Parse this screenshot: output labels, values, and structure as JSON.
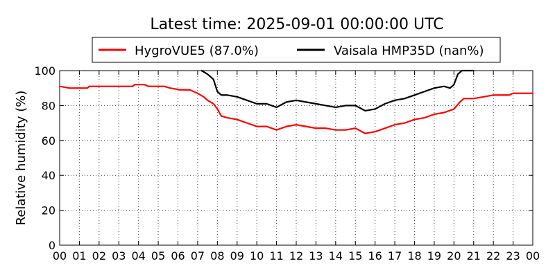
{
  "chart_data": {
    "type": "line",
    "title": "Latest time: 2025-09-01 00:00:00 UTC",
    "xlabel": "",
    "ylabel": "Relative humidity (%)",
    "ylim": [
      0,
      100
    ],
    "xlim": [
      0,
      24
    ],
    "grid": true,
    "legend_position": "top",
    "x_tick_labels": [
      "00",
      "01",
      "02",
      "03",
      "04",
      "05",
      "06",
      "07",
      "08",
      "09",
      "10",
      "11",
      "12",
      "13",
      "14",
      "15",
      "16",
      "17",
      "18",
      "19",
      "20",
      "21",
      "22",
      "23",
      "00"
    ],
    "y_ticks": [
      0,
      20,
      40,
      60,
      80,
      100
    ],
    "series": [
      {
        "name": "HygroVUE5 (87.0%)",
        "color": "#ff0000",
        "points": [
          [
            0.0,
            91
          ],
          [
            0.5,
            90
          ],
          [
            1.4,
            90
          ],
          [
            1.5,
            91
          ],
          [
            3.7,
            91
          ],
          [
            3.8,
            92
          ],
          [
            4.3,
            92
          ],
          [
            4.5,
            91
          ],
          [
            5.3,
            91
          ],
          [
            5.6,
            90
          ],
          [
            6.1,
            89
          ],
          [
            6.6,
            89
          ],
          [
            7.0,
            87
          ],
          [
            7.3,
            85
          ],
          [
            7.5,
            83
          ],
          [
            7.8,
            81
          ],
          [
            8.0,
            78
          ],
          [
            8.2,
            74
          ],
          [
            8.5,
            73
          ],
          [
            9.0,
            72
          ],
          [
            9.5,
            70
          ],
          [
            10.0,
            68
          ],
          [
            10.5,
            68
          ],
          [
            11.0,
            66
          ],
          [
            11.5,
            68
          ],
          [
            12.0,
            69
          ],
          [
            12.5,
            68
          ],
          [
            13.0,
            67
          ],
          [
            13.5,
            67
          ],
          [
            14.0,
            66
          ],
          [
            14.5,
            66
          ],
          [
            15.0,
            67
          ],
          [
            15.5,
            64
          ],
          [
            16.0,
            65
          ],
          [
            16.5,
            67
          ],
          [
            17.0,
            69
          ],
          [
            17.5,
            70
          ],
          [
            18.0,
            72
          ],
          [
            18.5,
            73
          ],
          [
            19.0,
            75
          ],
          [
            19.5,
            76
          ],
          [
            20.0,
            78
          ],
          [
            20.3,
            82
          ],
          [
            20.5,
            84
          ],
          [
            21.0,
            84
          ],
          [
            21.5,
            85
          ],
          [
            22.0,
            86
          ],
          [
            22.5,
            86
          ],
          [
            22.8,
            86
          ],
          [
            23.0,
            87
          ],
          [
            24.0,
            87
          ]
        ]
      },
      {
        "name": "Vaisala HMP35D (nan%)",
        "color": "#000000",
        "points": [
          [
            7.2,
            100
          ],
          [
            7.5,
            98
          ],
          [
            7.8,
            95
          ],
          [
            8.0,
            88
          ],
          [
            8.2,
            86
          ],
          [
            8.5,
            86
          ],
          [
            9.0,
            85
          ],
          [
            9.5,
            83
          ],
          [
            10.0,
            81
          ],
          [
            10.5,
            81
          ],
          [
            11.0,
            79
          ],
          [
            11.5,
            82
          ],
          [
            12.0,
            83
          ],
          [
            12.5,
            82
          ],
          [
            13.0,
            81
          ],
          [
            13.5,
            80
          ],
          [
            14.0,
            79
          ],
          [
            14.5,
            80
          ],
          [
            15.0,
            80
          ],
          [
            15.5,
            77
          ],
          [
            16.0,
            78
          ],
          [
            16.5,
            81
          ],
          [
            17.0,
            83
          ],
          [
            17.5,
            84
          ],
          [
            18.0,
            86
          ],
          [
            18.5,
            88
          ],
          [
            19.0,
            90
          ],
          [
            19.5,
            91
          ],
          [
            19.8,
            90
          ],
          [
            20.0,
            92
          ],
          [
            20.2,
            98
          ],
          [
            20.4,
            100
          ],
          [
            21.0,
            100
          ]
        ]
      }
    ]
  }
}
